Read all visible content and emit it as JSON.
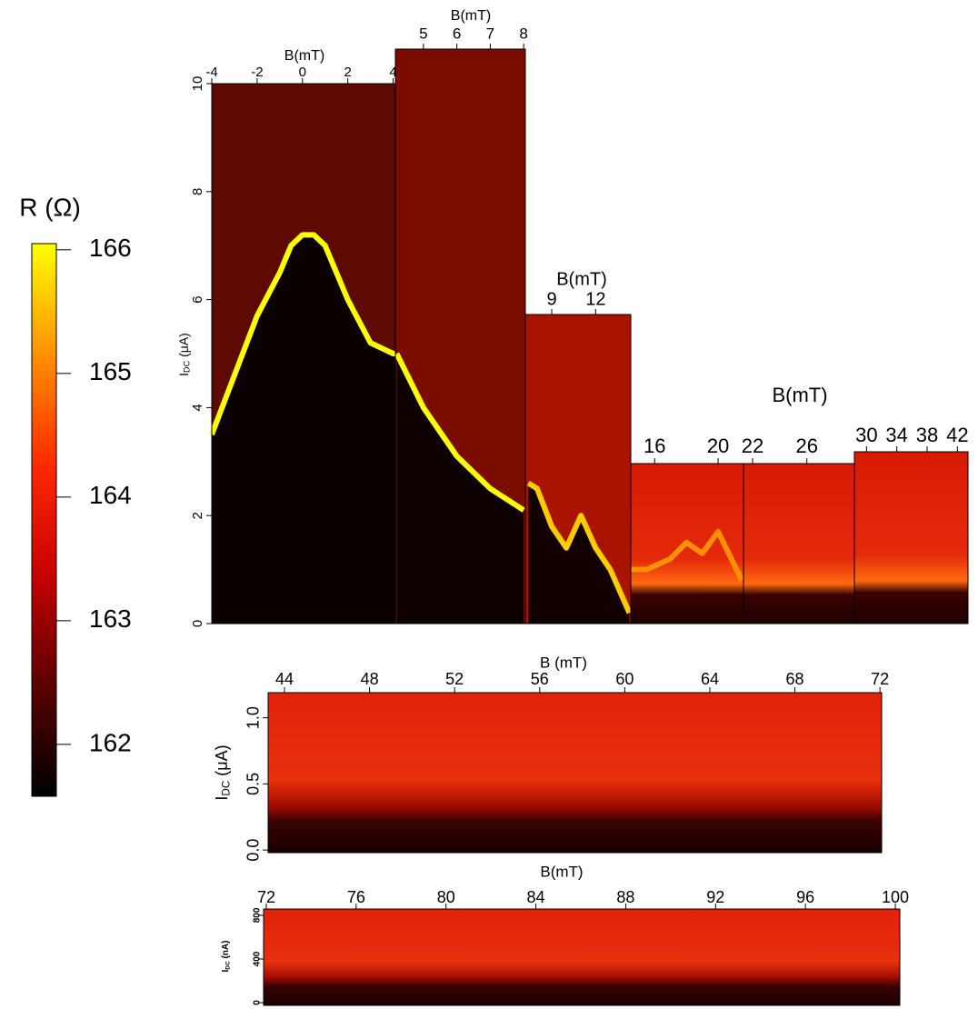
{
  "chart_data": [
    {
      "type": "heatmap",
      "xlabel": "B(mT)",
      "xlim": [
        -4,
        4.1
      ],
      "xticks": [
        -4,
        -2,
        0,
        2,
        4
      ],
      "ylim": [
        0,
        10
      ],
      "yticks": [
        0,
        2,
        4,
        6,
        8,
        10
      ],
      "ylabel": {
        "main": "I",
        "sub": "DC",
        "unit": " (μA)"
      },
      "ridge": {
        "x": [
          -4,
          -3,
          -2,
          -1,
          -0.5,
          0,
          0.5,
          1,
          2,
          3,
          4,
          4.1
        ],
        "values": [
          3.5,
          4.6,
          5.7,
          6.5,
          7.0,
          7.2,
          7.2,
          7.0,
          6.0,
          5.2,
          5.0,
          5.0
        ],
        "color": "#ffff00"
      },
      "colorbar": {
        "title": "R (Ω)",
        "zlim": [
          161.58,
          166.05
        ],
        "zticks": [
          162,
          163,
          164,
          165,
          166
        ],
        "colors": [
          "#000000",
          "#5a0000",
          "#c80000",
          "#ff2a00",
          "#ff9000",
          "#ffff00"
        ]
      }
    },
    {
      "type": "heatmap",
      "xlabel": "B(mT)",
      "xlim": [
        4.16,
        8.05
      ],
      "xticks": [
        5,
        6,
        7,
        8
      ],
      "ylim": [
        0,
        10.64
      ],
      "ridge": {
        "x": [
          4.2,
          5,
          6,
          7,
          8
        ],
        "values": [
          5.0,
          4.0,
          3.1,
          2.5,
          2.1
        ],
        "color": "#ffff00"
      }
    },
    {
      "type": "heatmap",
      "xlabel": "B(mT)",
      "xlim": [
        7.2,
        14.4
      ],
      "xticks": [
        9,
        12
      ],
      "ylim": [
        0,
        5.72
      ],
      "ridge": {
        "x": [
          7.4,
          8,
          9,
          10,
          11,
          12,
          13,
          14.3
        ],
        "values": [
          2.6,
          2.5,
          1.8,
          1.4,
          2.0,
          1.4,
          1.0,
          0.2
        ],
        "color": "#ffcc00"
      }
    },
    {
      "type": "heatmap",
      "xlabel": "B(mT)",
      "xlim": [
        14.5,
        21.6
      ],
      "xticks": [
        16,
        20
      ],
      "ylim": [
        0,
        2.96
      ],
      "ridge": {
        "x": [
          14.5,
          15.5,
          17,
          18,
          19,
          20,
          21,
          21.5
        ],
        "values": [
          1.0,
          1.0,
          1.2,
          1.5,
          1.3,
          1.7,
          1.1,
          0.8
        ],
        "color": "#ff9000"
      }
    },
    {
      "type": "heatmap",
      "xlim": [
        21.33,
        29.5
      ],
      "xticks": [
        22,
        26
      ],
      "ylim": [
        0,
        2.96
      ]
    },
    {
      "type": "heatmap",
      "xlim": [
        28.4,
        43.4
      ],
      "xticks": [
        30,
        34,
        38,
        42
      ],
      "ylim": [
        0,
        3.18
      ]
    },
    {
      "type": "heatmap",
      "xlabel": "B (mT)",
      "xlim": [
        43.23,
        72.08
      ],
      "xticks": [
        44,
        48,
        52,
        56,
        60,
        64,
        68,
        72
      ],
      "ylim": [
        -0.02,
        1.19
      ],
      "yticks": [
        {
          "value": 0,
          "label": "0.0"
        },
        0.5,
        {
          "value": 1,
          "label": "1.0"
        }
      ],
      "ylabel": {
        "main": "I",
        "sub": "DC",
        "unit": " (μA)"
      }
    },
    {
      "type": "heatmap",
      "xlabel": "B(mT)",
      "xlim": [
        71.88,
        100.2
      ],
      "xticks": [
        72,
        76,
        80,
        84,
        88,
        92,
        96,
        100
      ],
      "ylim": [
        -25,
        858
      ],
      "yticks": [
        0,
        400,
        800
      ],
      "ylabel": {
        "main": "I",
        "sub": "DC",
        "unit": " (nA)"
      }
    }
  ]
}
